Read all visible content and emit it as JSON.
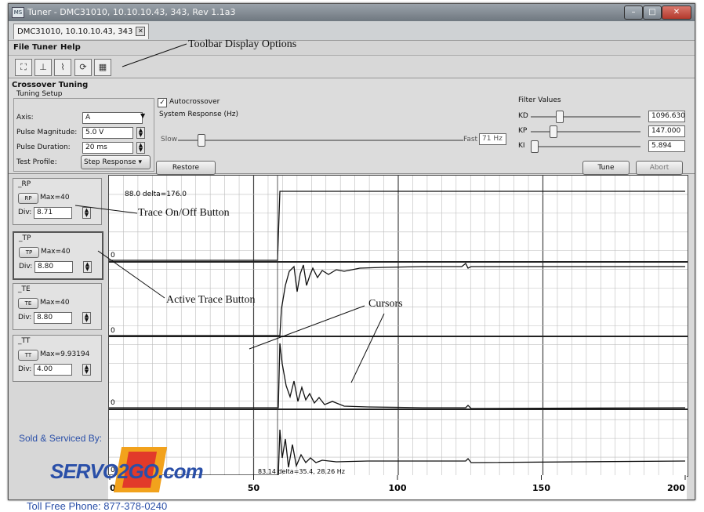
{
  "window": {
    "title": "Tuner - DMC31010, 10.10.10.43, 343, Rev 1.1a3",
    "app_icon_text": "MS",
    "controls": {
      "minimize": "–",
      "maximize": "□",
      "close": "✕"
    }
  },
  "tab": {
    "label": "DMC31010, 10.10.10.43, 343"
  },
  "menu": {
    "file": "File",
    "tuner": "Tuner",
    "help": "Help"
  },
  "toolbar": {
    "icons": [
      "zoom-extents-icon",
      "axis-icon",
      "chart-icon",
      "cycle-icon",
      "stop-icon"
    ]
  },
  "crossover": {
    "title": "Crossover Tuning",
    "setup_label": "Tuning Setup",
    "axis_label": "Axis:",
    "axis_value": "A",
    "pulse_magnitude_label": "Pulse Magnitude:",
    "pulse_magnitude_value": "5.0 V",
    "pulse_duration_label": "Pulse Duration:",
    "pulse_duration_value": "20 ms",
    "test_profile_label": "Test Profile:",
    "test_profile_value": "Step Response",
    "autocrossover_label": "Autocrossover",
    "system_response_label": "System Response (Hz)",
    "slow_label": "Slow",
    "fast_label": "Fast",
    "fast_value": "71 Hz",
    "slider_level": 0.07,
    "restore_defaults": "Restore Defaults"
  },
  "filter": {
    "title": "Filter Values",
    "kd_label": "KD",
    "kd_value": "1096.630",
    "kp_label": "KP",
    "kp_value": "147.000",
    "ki_label": "KI",
    "ki_value": "5.894",
    "tune": "Tune",
    "abort": "Abort"
  },
  "traces": [
    {
      "name": "_RP",
      "btn": "RP",
      "max": "Max=40",
      "div_label": "Div:",
      "div": "8.71"
    },
    {
      "name": "_TP",
      "btn": "TP",
      "max": "Max=40",
      "div_label": "Div:",
      "div": "8.80"
    },
    {
      "name": "_TE",
      "btn": "TE",
      "max": "Max=40",
      "div_label": "Div:",
      "div": "8.80"
    },
    {
      "name": "_TT",
      "btn": "TT",
      "max": "Max=9.93194",
      "div_label": "Div:",
      "div": "4.00"
    }
  ],
  "plot": {
    "top_readout": "88.0 delta=176.0",
    "bottom_readout": "83.14 delta=35.4, 28.26 Hz",
    "zero_label": "0",
    "x_ticks": [
      "0",
      "50",
      "100",
      "150",
      "200"
    ]
  },
  "annotations": {
    "toolbar": "Toolbar Display Options",
    "trace_onoff": "Trace On/Off Button",
    "active_trace": "Active Trace Button",
    "cursors": "Cursors"
  },
  "watermark": {
    "sold_by": "Sold & Serviced By:",
    "brand": "SERVO2GO.com",
    "phone": "Toll Free Phone: 877-378-0240"
  },
  "colors": {
    "accent": "#2a4fa8",
    "brand_red": "#e23a2a",
    "brand_orange": "#f2a21c"
  }
}
